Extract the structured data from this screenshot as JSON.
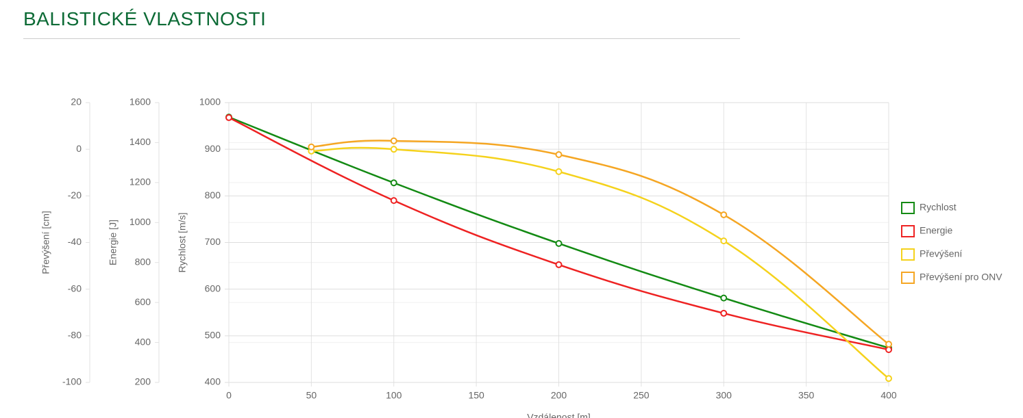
{
  "chart_data": {
    "type": "line",
    "title": "BALISTICKÉ VLASTNOSTI",
    "xlabel": "Vzdálenost [m]",
    "xlim": [
      0,
      400
    ],
    "xticks": [
      0,
      50,
      100,
      150,
      200,
      250,
      300,
      350,
      400
    ],
    "ylabel": "Rychlost [m/s]",
    "ylim": [
      400,
      1000
    ],
    "yticks": [
      400,
      500,
      600,
      700,
      800,
      900,
      1000
    ],
    "y2label": "Energie [J]",
    "y2lim": [
      200,
      1600
    ],
    "y2ticks": [
      200,
      400,
      600,
      800,
      1000,
      1200,
      1400,
      1600
    ],
    "y3label": "Převýšení [cm]",
    "y3lim": [
      -100,
      20
    ],
    "y3ticks": [
      -100,
      -80,
      -60,
      -40,
      -20,
      0,
      20
    ],
    "grid": true,
    "series": [
      {
        "name": "Rychlost",
        "color": "#138a13",
        "axis": "y",
        "x": [
          0,
          100,
          200,
          300,
          400
        ],
        "values": [
          969,
          828,
          698,
          581,
          474
        ]
      },
      {
        "name": "Energie",
        "color": "#ee2222",
        "axis": "y2",
        "x": [
          0,
          100,
          200,
          300,
          400
        ],
        "values": [
          1525,
          1110,
          789,
          546,
          364
        ]
      },
      {
        "name": "Převýšení",
        "color": "#f5d21c",
        "axis": "y3",
        "x": [
          50,
          100,
          200,
          300,
          400
        ],
        "values": [
          -0.8,
          0,
          -9.6,
          -39.3,
          -98.3
        ]
      },
      {
        "name": "Převýšení pro ONV",
        "color": "#f5a623",
        "axis": "y3",
        "x": [
          50,
          100,
          200,
          300,
          400
        ],
        "values": [
          1,
          3.6,
          -2.3,
          -28.1,
          -83.6
        ]
      }
    ]
  }
}
